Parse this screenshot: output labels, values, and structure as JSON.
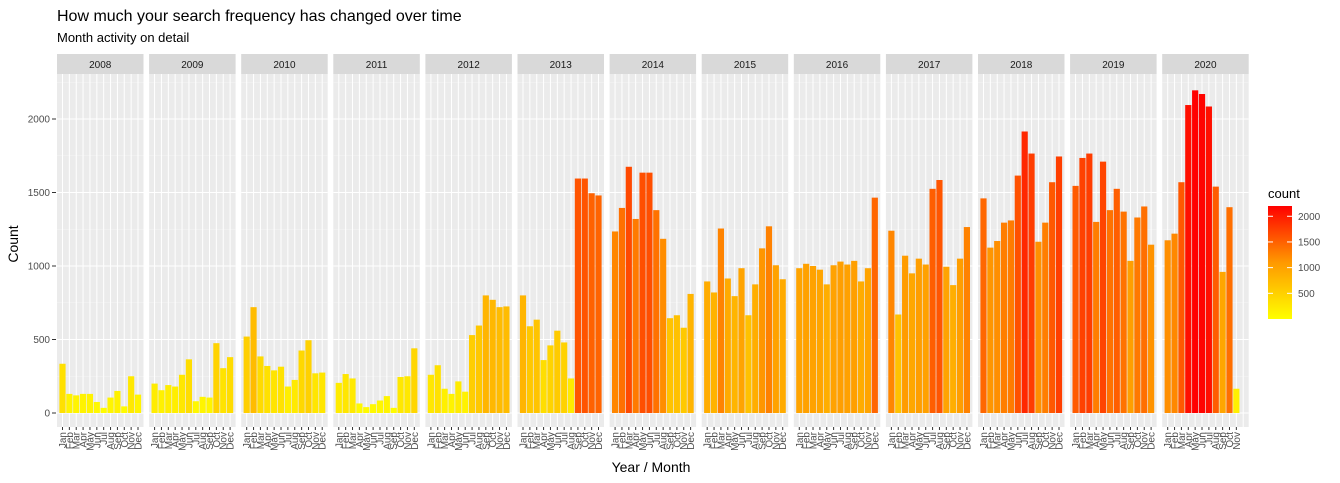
{
  "chart_data": {
    "type": "bar",
    "title": "How much your search frequency has changed over time",
    "subtitle": "Month activity on detail",
    "xlabel": "Year / Month",
    "ylabel": "Count",
    "ylim": [
      0,
      2250
    ],
    "y_ticks": [
      0,
      500,
      1000,
      1500,
      2000
    ],
    "grid": true,
    "legend": {
      "title": "count",
      "position": "right",
      "breaks": [
        500,
        1000,
        1500,
        2000
      ],
      "range": [
        0,
        2200
      ],
      "colors": [
        "#ffff00",
        "#ff9900",
        "#ff0000"
      ]
    },
    "facets": [
      {
        "year": "2008",
        "months": [
          "Jan",
          "Feb",
          "Mar",
          "Apr",
          "May",
          "Jun",
          "Jul",
          "Aug",
          "Sep",
          "Oct",
          "Nov",
          "Dec"
        ],
        "values": [
          335,
          130,
          120,
          130,
          130,
          75,
          35,
          105,
          150,
          45,
          250,
          125
        ]
      },
      {
        "year": "2009",
        "months": [
          "Jan",
          "Feb",
          "Mar",
          "Apr",
          "May",
          "Jun",
          "Jul",
          "Aug",
          "Sep",
          "Oct",
          "Nov",
          "Dec"
        ],
        "values": [
          200,
          155,
          190,
          180,
          260,
          365,
          80,
          110,
          105,
          475,
          305,
          380
        ]
      },
      {
        "year": "2010",
        "months": [
          "Jan",
          "Feb",
          "Mar",
          "Apr",
          "May",
          "Jun",
          "Jul",
          "Aug",
          "Sep",
          "Oct",
          "Nov",
          "Dec"
        ],
        "values": [
          520,
          720,
          385,
          320,
          290,
          315,
          180,
          225,
          425,
          495,
          270,
          275
        ]
      },
      {
        "year": "2011",
        "months": [
          "Jan",
          "Feb",
          "Mar",
          "Apr",
          "May",
          "Jun",
          "Jul",
          "Aug",
          "Sep",
          "Oct",
          "Nov",
          "Dec"
        ],
        "values": [
          205,
          265,
          235,
          65,
          40,
          60,
          85,
          115,
          35,
          245,
          250,
          440
        ]
      },
      {
        "year": "2012",
        "months": [
          "Jan",
          "Feb",
          "Mar",
          "Apr",
          "May",
          "Jun",
          "Jul",
          "Aug",
          "Sep",
          "Oct",
          "Nov",
          "Dec"
        ],
        "values": [
          260,
          325,
          165,
          130,
          215,
          145,
          530,
          595,
          800,
          770,
          720,
          725
        ]
      },
      {
        "year": "2013",
        "months": [
          "Jan",
          "Feb",
          "Mar",
          "Apr",
          "May",
          "Jun",
          "Jul",
          "Aug",
          "Sep",
          "Oct",
          "Nov",
          "Dec"
        ],
        "values": [
          800,
          590,
          635,
          360,
          460,
          560,
          480,
          235,
          1595,
          1595,
          1495,
          1480
        ]
      },
      {
        "year": "2014",
        "months": [
          "Jan",
          "Feb",
          "Mar",
          "Apr",
          "May",
          "Jun",
          "Jul",
          "Aug",
          "Sep",
          "Oct",
          "Nov",
          "Dec"
        ],
        "values": [
          1235,
          1395,
          1675,
          1320,
          1635,
          1635,
          1380,
          1185,
          645,
          665,
          580,
          810
        ]
      },
      {
        "year": "2015",
        "months": [
          "Jan",
          "Feb",
          "Mar",
          "Apr",
          "May",
          "Jun",
          "Jul",
          "Aug",
          "Sep",
          "Oct",
          "Nov",
          "Dec"
        ],
        "values": [
          895,
          820,
          1255,
          915,
          795,
          985,
          665,
          875,
          1120,
          1270,
          1005,
          910
        ]
      },
      {
        "year": "2016",
        "months": [
          "Jan",
          "Feb",
          "Mar",
          "Apr",
          "May",
          "Jun",
          "Jul",
          "Aug",
          "Sep",
          "Oct",
          "Nov",
          "Dec"
        ],
        "values": [
          985,
          1015,
          1000,
          975,
          875,
          1005,
          1030,
          1010,
          1035,
          895,
          985,
          1465
        ]
      },
      {
        "year": "2017",
        "months": [
          "Jan",
          "Feb",
          "Mar",
          "Apr",
          "May",
          "Jun",
          "Jul",
          "Aug",
          "Sep",
          "Oct",
          "Nov",
          "Dec"
        ],
        "values": [
          1240,
          670,
          1070,
          950,
          1050,
          1010,
          1525,
          1585,
          995,
          870,
          1050,
          1265
        ]
      },
      {
        "year": "2018",
        "months": [
          "Jan",
          "Feb",
          "Mar",
          "Apr",
          "May",
          "Jun",
          "Jul",
          "Aug",
          "Sep",
          "Oct",
          "Nov",
          "Dec"
        ],
        "values": [
          1460,
          1125,
          1170,
          1295,
          1310,
          1615,
          1915,
          1765,
          1165,
          1295,
          1570,
          1745
        ]
      },
      {
        "year": "2019",
        "months": [
          "Jan",
          "Feb",
          "Mar",
          "Apr",
          "May",
          "Jun",
          "Jul",
          "Aug",
          "Sep",
          "Oct",
          "Nov",
          "Dec"
        ],
        "values": [
          1545,
          1735,
          1765,
          1300,
          1710,
          1380,
          1525,
          1370,
          1035,
          1330,
          1405,
          1145
        ]
      },
      {
        "year": "2020",
        "months": [
          "Jan",
          "Feb",
          "Mar",
          "Apr",
          "May",
          "Jun",
          "Jul",
          "Aug",
          "Sep",
          "Oct",
          "Nov"
        ],
        "values": [
          1175,
          1220,
          1570,
          2095,
          2195,
          2170,
          2085,
          1540,
          960,
          1400,
          165
        ]
      }
    ]
  }
}
